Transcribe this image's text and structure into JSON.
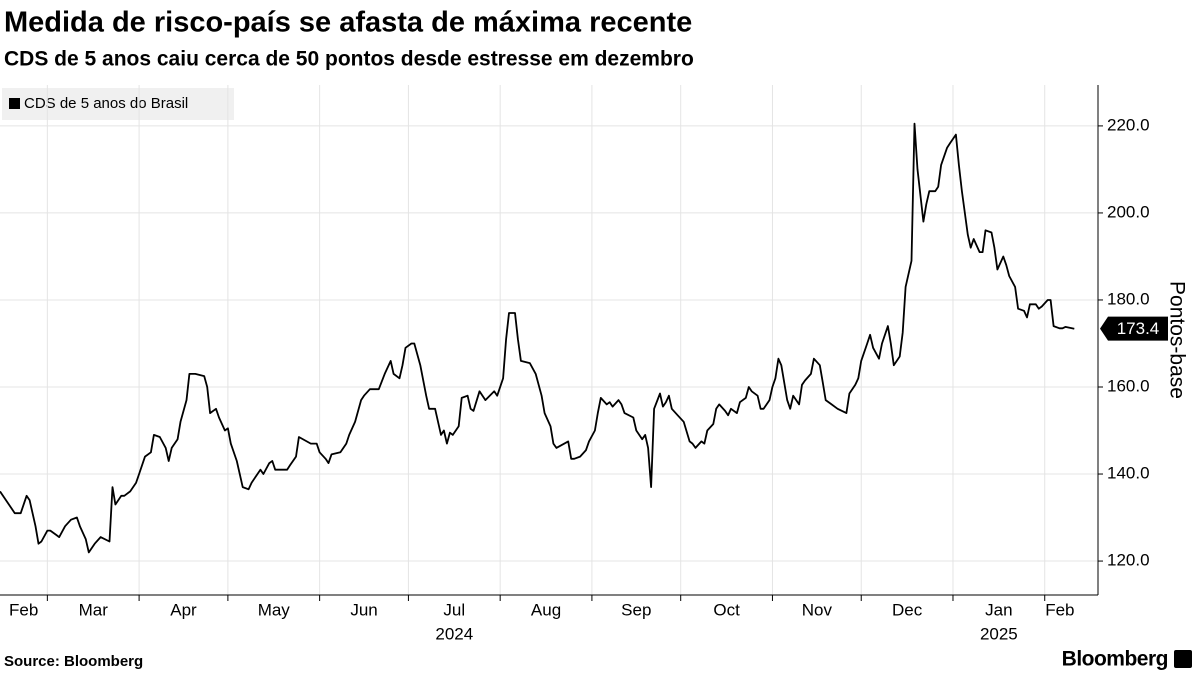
{
  "chart_data": {
    "type": "line",
    "title": "Medida de risco-país se afasta de máxima recente",
    "subtitle": "CDS de 5 anos caiu cerca de 50 pontos desde estresse em dezembro",
    "y_label": "Pontos-base",
    "source": "Source: Bloomberg",
    "brand": "Bloomberg",
    "x": [
      "2024-02-14",
      "2024-02-17",
      "2024-02-19",
      "2024-02-21",
      "2024-02-23",
      "2024-02-24",
      "2024-02-26",
      "2024-02-27",
      "2024-02-28",
      "2024-03-01",
      "2024-03-02",
      "2024-03-04",
      "2024-03-05",
      "2024-03-07",
      "2024-03-09",
      "2024-03-11",
      "2024-03-12",
      "2024-03-14",
      "2024-03-15",
      "2024-03-17",
      "2024-03-19",
      "2024-03-22",
      "2024-03-23",
      "2024-03-24",
      "2024-03-26",
      "2024-03-27",
      "2024-03-29",
      "2024-03-31",
      "2024-04-01",
      "2024-04-03",
      "2024-04-05",
      "2024-04-06",
      "2024-04-08",
      "2024-04-10",
      "2024-04-11",
      "2024-04-12",
      "2024-04-14",
      "2024-04-15",
      "2024-04-17",
      "2024-04-18",
      "2024-04-20",
      "2024-04-23",
      "2024-04-24",
      "2024-04-25",
      "2024-04-27",
      "2024-04-28",
      "2024-04-30",
      "2024-05-01",
      "2024-05-02",
      "2024-05-04",
      "2024-05-06",
      "2024-05-08",
      "2024-05-09",
      "2024-05-11",
      "2024-05-12",
      "2024-05-13",
      "2024-05-15",
      "2024-05-16",
      "2024-05-17",
      "2024-05-21",
      "2024-05-22",
      "2024-05-24",
      "2024-05-25",
      "2024-05-29",
      "2024-05-31",
      "2024-06-01",
      "2024-06-03",
      "2024-06-04",
      "2024-06-05",
      "2024-06-08",
      "2024-06-10",
      "2024-06-11",
      "2024-06-13",
      "2024-06-15",
      "2024-06-16",
      "2024-06-18",
      "2024-06-21",
      "2024-06-23",
      "2024-06-25",
      "2024-06-26",
      "2024-06-28",
      "2024-06-29",
      "2024-06-30",
      "2024-07-02",
      "2024-07-03",
      "2024-07-05",
      "2024-07-07",
      "2024-07-08",
      "2024-07-10",
      "2024-07-12",
      "2024-07-13",
      "2024-07-14",
      "2024-07-15",
      "2024-07-16",
      "2024-07-18",
      "2024-07-19",
      "2024-07-21",
      "2024-07-22",
      "2024-07-23",
      "2024-07-25",
      "2024-07-27",
      "2024-07-30",
      "2024-07-31",
      "2024-08-02",
      "2024-08-03",
      "2024-08-04",
      "2024-08-06",
      "2024-08-07",
      "2024-08-08",
      "2024-08-11",
      "2024-08-13",
      "2024-08-15",
      "2024-08-16",
      "2024-08-18",
      "2024-08-19",
      "2024-08-20",
      "2024-08-24",
      "2024-08-25",
      "2024-08-26",
      "2024-08-28",
      "2024-08-30",
      "2024-08-31",
      "2024-09-02",
      "2024-09-03",
      "2024-09-04",
      "2024-09-06",
      "2024-09-07",
      "2024-09-08",
      "2024-09-10",
      "2024-09-11",
      "2024-09-12",
      "2024-09-15",
      "2024-09-16",
      "2024-09-18",
      "2024-09-19",
      "2024-09-20",
      "2024-09-21",
      "2024-09-22",
      "2024-09-24",
      "2024-09-25",
      "2024-09-26",
      "2024-09-27",
      "2024-09-28",
      "2024-09-30",
      "2024-10-02",
      "2024-10-04",
      "2024-10-05",
      "2024-10-06",
      "2024-10-08",
      "2024-10-09",
      "2024-10-10",
      "2024-10-12",
      "2024-10-13",
      "2024-10-14",
      "2024-10-16",
      "2024-10-17",
      "2024-10-18",
      "2024-10-20",
      "2024-10-21",
      "2024-10-23",
      "2024-10-24",
      "2024-10-25",
      "2024-10-27",
      "2024-10-28",
      "2024-10-29",
      "2024-10-31",
      "2024-11-01",
      "2024-11-02",
      "2024-11-03",
      "2024-11-04",
      "2024-11-06",
      "2024-11-07",
      "2024-11-08",
      "2024-11-10",
      "2024-11-11",
      "2024-11-12",
      "2024-11-14",
      "2024-11-15",
      "2024-11-17",
      "2024-11-18",
      "2024-11-19",
      "2024-11-21",
      "2024-11-23",
      "2024-11-26",
      "2024-11-27",
      "2024-11-29",
      "2024-11-30",
      "2024-12-01",
      "2024-12-03",
      "2024-12-04",
      "2024-12-05",
      "2024-12-07",
      "2024-12-08",
      "2024-12-10",
      "2024-12-11",
      "2024-12-12",
      "2024-12-14",
      "2024-12-15",
      "2024-12-16",
      "2024-12-18",
      "2024-12-19",
      "2024-12-20",
      "2024-12-22",
      "2024-12-23",
      "2024-12-24",
      "2024-12-26",
      "2024-12-27",
      "2024-12-28",
      "2024-12-30",
      "2024-12-31",
      "2025-01-02",
      "2025-01-03",
      "2025-01-04",
      "2025-01-06",
      "2025-01-07",
      "2025-01-08",
      "2025-01-10",
      "2025-01-11",
      "2025-01-12",
      "2025-01-14",
      "2025-01-15",
      "2025-01-16",
      "2025-01-18",
      "2025-01-19",
      "2025-01-20",
      "2025-01-22",
      "2025-01-23",
      "2025-01-25",
      "2025-01-26",
      "2025-01-27",
      "2025-01-29",
      "2025-01-30",
      "2025-01-31",
      "2025-02-02",
      "2025-02-03",
      "2025-02-04",
      "2025-02-06",
      "2025-02-07",
      "2025-02-08",
      "2025-02-11"
    ],
    "series": [
      {
        "name": "CDS de 5 anos do Brasil",
        "color": "#000000",
        "values": [
          136,
          133,
          131,
          131,
          135,
          134,
          128,
          124,
          124.5,
          127,
          127,
          126,
          125.5,
          128,
          129.5,
          130,
          128,
          125,
          122,
          124,
          125.5,
          124.5,
          137,
          133,
          135,
          135,
          136,
          138,
          140,
          144,
          145,
          149,
          148.5,
          146,
          143,
          146,
          148,
          152,
          157,
          163,
          163,
          162.5,
          160,
          154,
          155,
          153,
          150,
          150.5,
          147,
          143,
          137,
          136.5,
          138,
          140,
          141,
          140,
          142.5,
          143,
          141,
          141,
          142,
          144,
          148.5,
          147,
          147,
          145,
          143.5,
          142.5,
          144.5,
          145,
          147,
          149,
          152,
          157,
          158,
          159.5,
          159.5,
          163,
          166,
          163,
          162,
          165,
          169,
          170,
          170,
          165,
          158,
          155,
          155,
          149,
          150,
          147,
          149.5,
          149,
          151,
          157.5,
          158,
          155,
          154.5,
          159,
          157,
          159,
          158,
          162,
          171,
          177,
          177,
          171,
          166,
          165.5,
          163,
          158,
          154,
          151,
          147,
          146,
          147.5,
          143.5,
          143.5,
          144,
          145.5,
          147.5,
          150,
          154,
          157.5,
          156,
          156.5,
          155.5,
          157,
          156,
          154,
          153,
          150,
          148,
          149,
          146,
          137,
          155,
          158.5,
          155.5,
          156.5,
          158,
          155,
          153.5,
          152,
          147.5,
          147,
          146,
          147.5,
          147,
          150,
          151.5,
          155,
          156,
          154.5,
          153.5,
          155,
          154,
          156.5,
          157.5,
          160,
          159,
          158,
          155,
          155,
          157,
          160,
          162,
          166.5,
          165,
          157,
          155,
          158,
          156,
          160.5,
          161.5,
          163,
          166.5,
          165,
          161,
          157,
          156,
          155,
          154,
          158.5,
          160.5,
          162,
          166,
          170,
          172,
          169,
          166.5,
          170,
          174,
          170,
          165,
          167,
          172.5,
          183,
          189,
          220.5,
          210,
          198,
          202,
          205,
          205,
          206,
          211,
          215,
          216,
          218,
          211,
          205,
          195,
          192,
          194,
          191,
          191,
          196,
          195.5,
          192,
          187,
          190,
          188,
          185.5,
          183,
          178,
          177.5,
          176,
          179,
          179,
          178,
          178.5,
          180,
          180,
          174,
          173.5,
          173.5,
          173.8,
          173.4
        ]
      }
    ],
    "xlim": [
      "2024-02-14",
      "2025-02-19"
    ],
    "xticks": [
      {
        "value": "2024-02-01",
        "label": "Feb"
      },
      {
        "value": "2024-03-01",
        "label": "Mar"
      },
      {
        "value": "2024-04-01",
        "label": "Apr"
      },
      {
        "value": "2024-05-01",
        "label": "May"
      },
      {
        "value": "2024-06-01",
        "label": "Jun"
      },
      {
        "value": "2024-07-01",
        "label": "Jul"
      },
      {
        "value": "2024-08-01",
        "label": "Aug"
      },
      {
        "value": "2024-09-01",
        "label": "Sep"
      },
      {
        "value": "2024-10-01",
        "label": "Oct"
      },
      {
        "value": "2024-11-01",
        "label": "Nov"
      },
      {
        "value": "2024-12-01",
        "label": "Dec"
      },
      {
        "value": "2025-01-01",
        "label": "Jan"
      },
      {
        "value": "2025-02-01",
        "label": "Feb"
      }
    ],
    "year_ticks": [
      {
        "value": "2024-07-01",
        "label": "2024"
      },
      {
        "value": "2025-01-01",
        "label": "2025"
      }
    ],
    "ylim": [
      112.2,
      229.4
    ],
    "yticks": [
      {
        "value": 120,
        "label": "120.0"
      },
      {
        "value": 140,
        "label": "140.0"
      },
      {
        "value": 160,
        "label": "160.0"
      },
      {
        "value": 180,
        "label": "180.0"
      },
      {
        "value": 200,
        "label": "200.0"
      },
      {
        "value": 220,
        "label": "220.0"
      }
    ],
    "grid": true
  }
}
